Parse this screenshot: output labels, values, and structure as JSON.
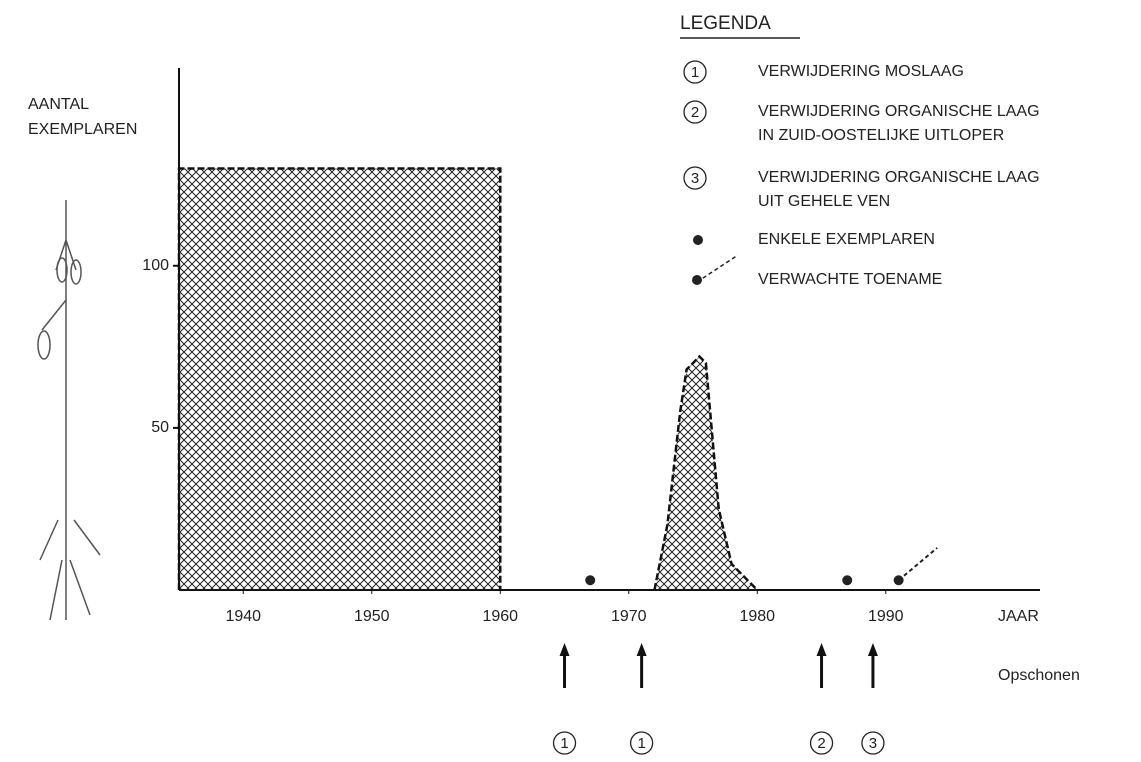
{
  "chart_data": {
    "type": "area",
    "y_label": [
      "AANTAL",
      "EXEMPLAREN"
    ],
    "x_label": "JAAR",
    "xlim": [
      1935,
      2002
    ],
    "ylim": [
      0,
      161
    ],
    "xticks": [
      1940,
      1950,
      1960,
      1970,
      1980,
      1990
    ],
    "yticks": [
      50,
      100
    ],
    "series": [
      {
        "x": [
          1935,
          1935,
          1960,
          1960
        ],
        "values": [
          0,
          130,
          130,
          0
        ]
      },
      {
        "x": [
          1972,
          1973,
          1974,
          1974.5,
          1975.5,
          1976,
          1977,
          1978,
          1980
        ],
        "values": [
          0,
          20,
          55,
          68,
          72,
          70,
          25,
          8,
          0
        ]
      }
    ],
    "dots": {
      "x": [
        1967,
        1987,
        1991
      ],
      "values": [
        3,
        3,
        3
      ]
    },
    "expected": {
      "x": [
        1991,
        1994
      ],
      "values": [
        3,
        13
      ]
    },
    "events": {
      "label": "Opschonen",
      "x": [
        1965,
        1971,
        1985,
        1989
      ],
      "markers": [
        "1",
        "1",
        "2",
        "3"
      ]
    },
    "legend": {
      "title": "LEGENDA",
      "items": [
        {
          "marker": "1",
          "lines": [
            "VERWIJDERING MOSLAAG"
          ]
        },
        {
          "marker": "2",
          "lines": [
            "VERWIJDERING ORGANISCHE LAAG",
            "IN ZUID-OOSTELIJKE UITLOPER"
          ]
        },
        {
          "marker": "3",
          "lines": [
            "VERWIJDERING ORGANISCHE LAAG",
            "UIT GEHELE VEN"
          ]
        },
        {
          "lines": [
            "ENKELE EXEMPLAREN"
          ]
        },
        {
          "lines": [
            "VERWACHTE TOENAME"
          ]
        }
      ]
    }
  }
}
